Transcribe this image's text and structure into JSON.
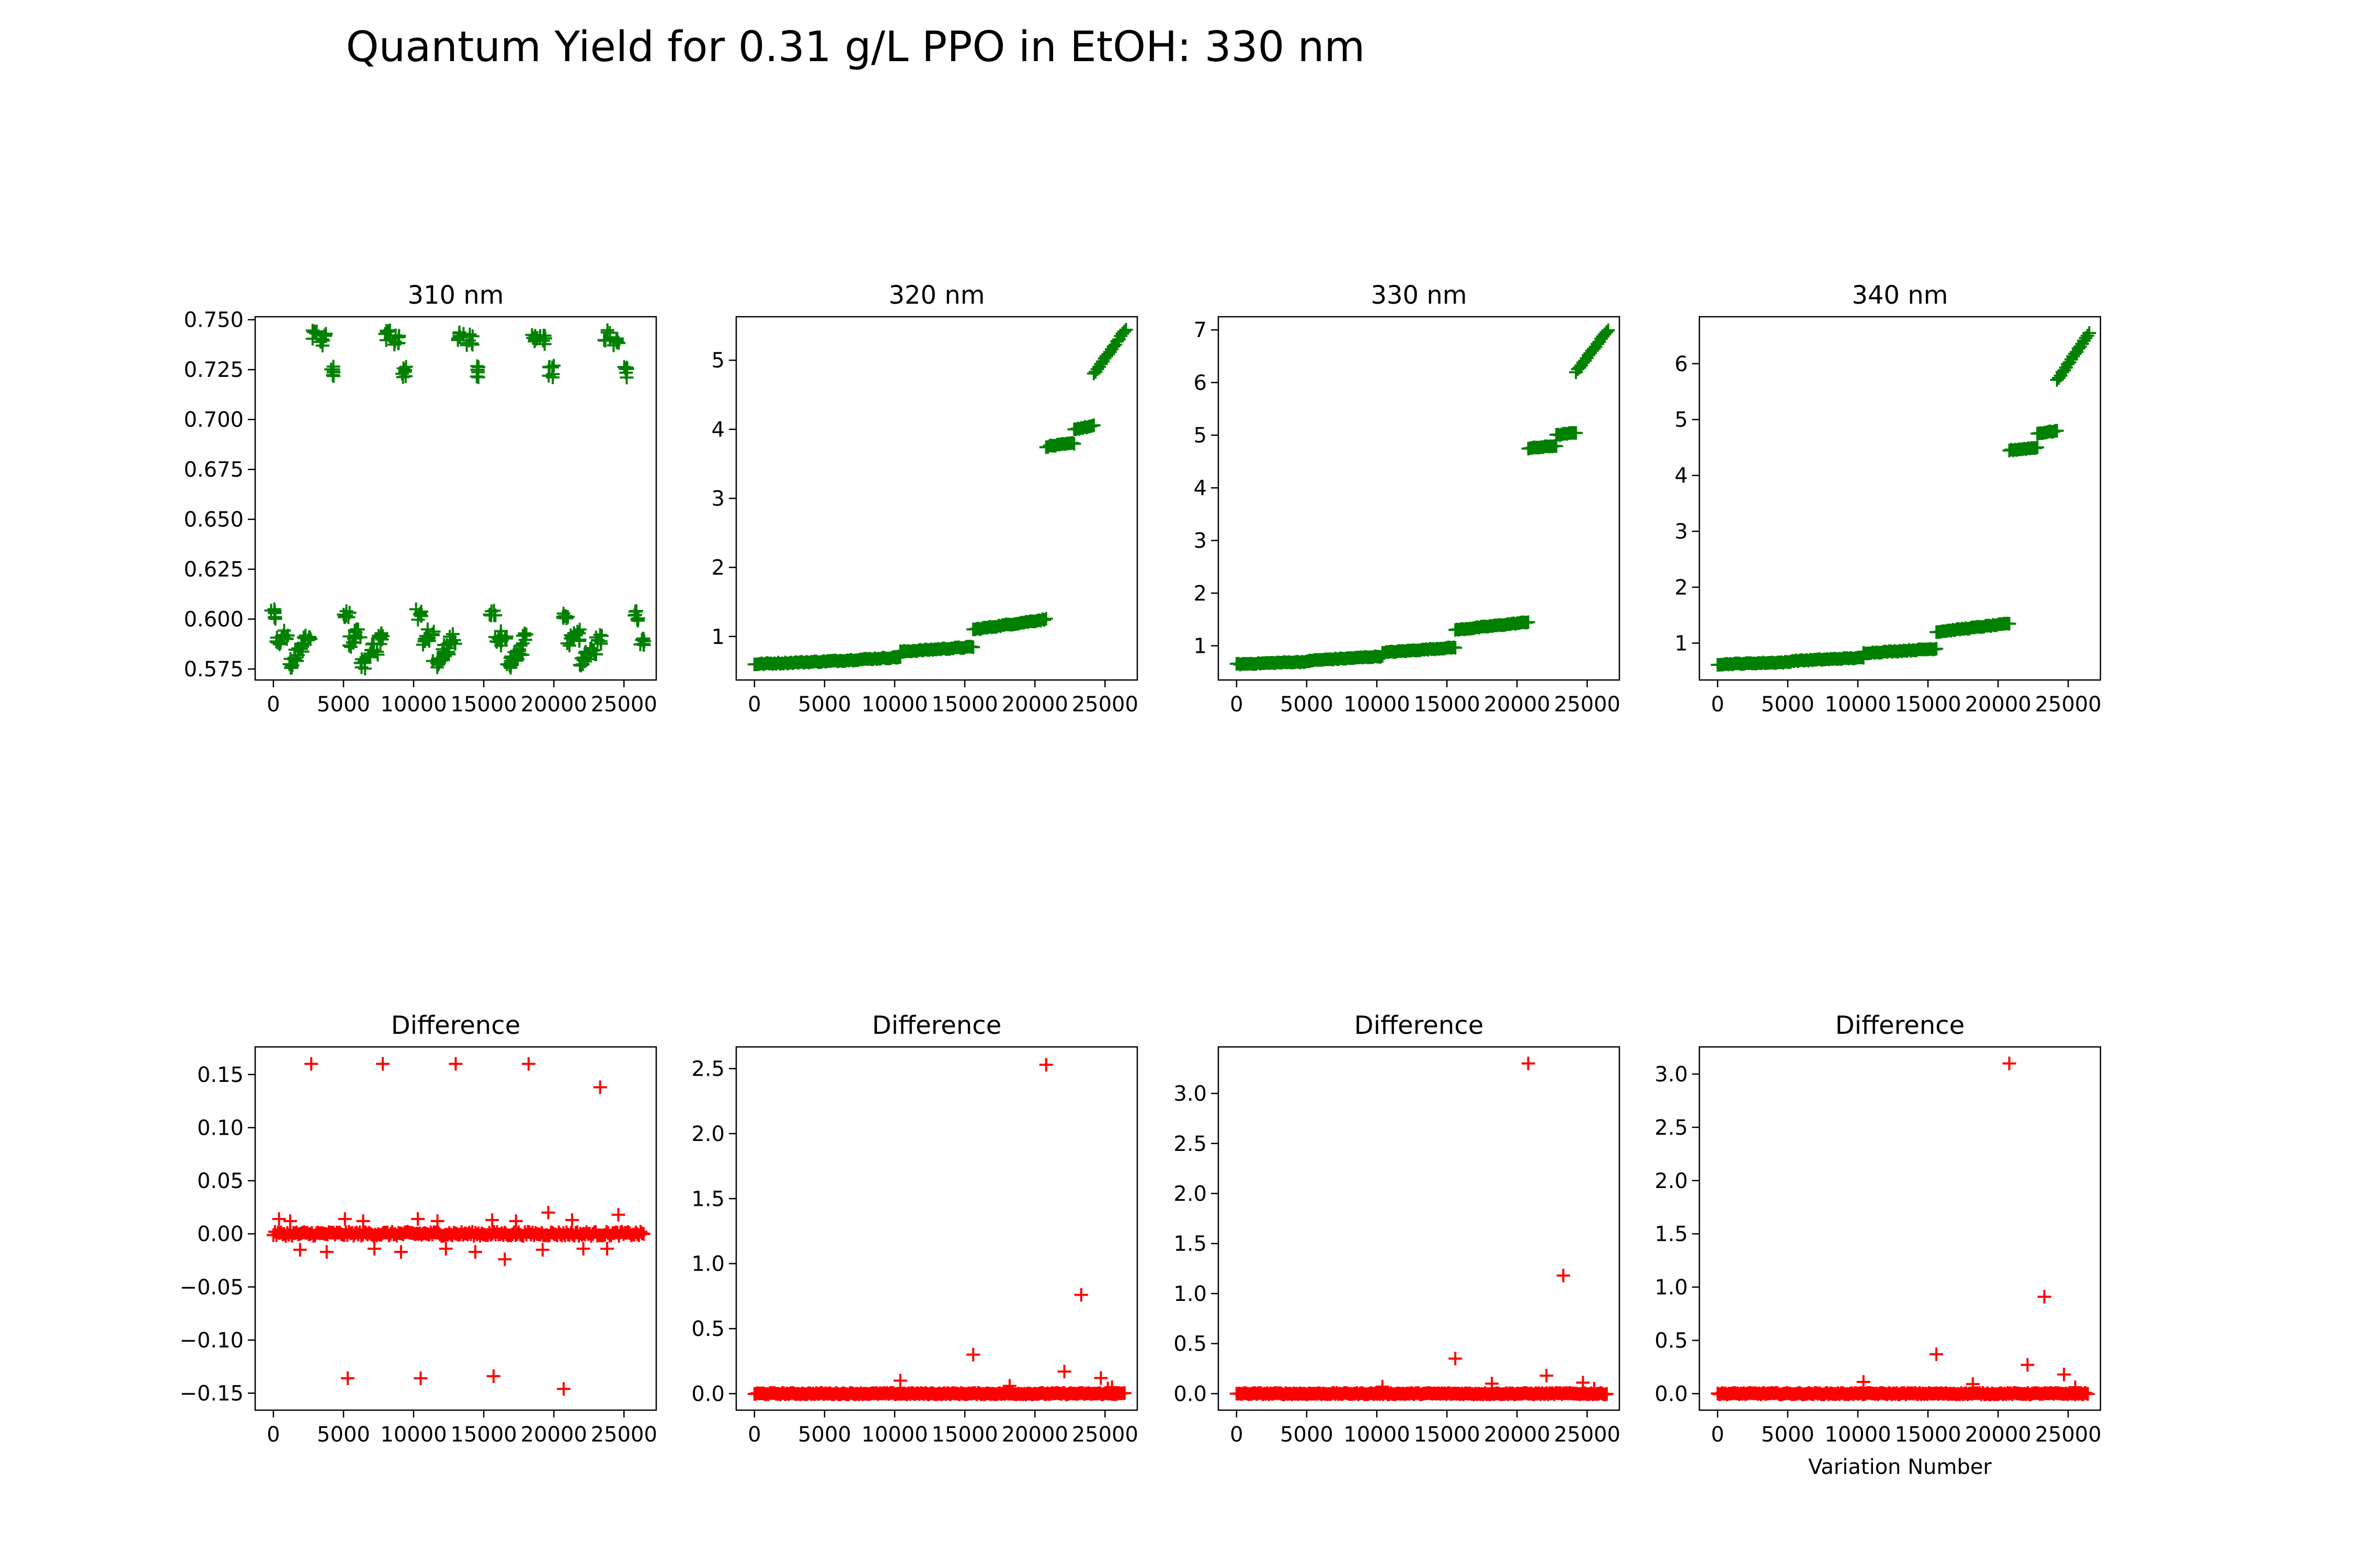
{
  "suptitle": "Quantum Yield for 0.31 g/L PPO in EtOH: 330 nm",
  "colors": {
    "data_marker": "#008000",
    "difference_marker": "#ff0000",
    "axes": "#000000",
    "background": "#ffffff"
  },
  "chart_data": [
    {
      "type": "scatter",
      "title": "310 nm",
      "xlabel": "",
      "ylabel": "",
      "marker": "+",
      "color": "#008000",
      "xlim": [
        -1300,
        27300
      ],
      "ylim": [
        0.5695,
        0.7515
      ],
      "xticks": [
        0,
        5000,
        10000,
        15000,
        20000,
        25000
      ],
      "xtick_labels": [
        "0",
        "5000",
        "10000",
        "15000",
        "20000",
        "25000"
      ],
      "yticks": [
        0.575,
        0.6,
        0.625,
        0.65,
        0.675,
        0.7,
        0.725,
        0.75
      ],
      "ytick_labels": [
        "0.575",
        "0.600",
        "0.625",
        "0.650",
        "0.675",
        "0.700",
        "0.725",
        "0.750"
      ],
      "pattern": "periodic",
      "period": 5200,
      "cluster_offsets": [
        0,
        400,
        800,
        1200,
        1600,
        2000,
        2400,
        3000,
        3600,
        4200
      ],
      "cluster_values": [
        0.602,
        0.589,
        0.592,
        0.578,
        0.582,
        0.585,
        0.59,
        0.742,
        0.74,
        0.724
      ],
      "cluster_spread": 0.006,
      "x_max": 26500
    },
    {
      "type": "scatter",
      "title": "320 nm",
      "xlabel": "",
      "ylabel": "",
      "marker": "+",
      "color": "#008000",
      "xlim": [
        -1300,
        27300
      ],
      "ylim": [
        0.37,
        5.63
      ],
      "xticks": [
        0,
        5000,
        10000,
        15000,
        20000,
        25000
      ],
      "xtick_labels": [
        "0",
        "5000",
        "10000",
        "15000",
        "20000",
        "25000"
      ],
      "yticks": [
        1,
        2,
        3,
        4,
        5
      ],
      "ytick_labels": [
        "1",
        "2",
        "3",
        "4",
        "5"
      ],
      "pattern": "segments",
      "segments": [
        [
          0,
          5200,
          0.6,
          0.64
        ],
        [
          5200,
          10400,
          0.64,
          0.7
        ],
        [
          10400,
          15600,
          0.78,
          0.85
        ],
        [
          15600,
          20800,
          1.1,
          1.25
        ],
        [
          20800,
          22800,
          3.75,
          3.8
        ],
        [
          22800,
          24200,
          4.0,
          4.05
        ],
        [
          24200,
          26500,
          4.8,
          5.45
        ]
      ]
    },
    {
      "type": "scatter",
      "title": "330 nm",
      "xlabel": "",
      "ylabel": "",
      "marker": "+",
      "color": "#008000",
      "xlim": [
        -1300,
        27300
      ],
      "ylim": [
        0.35,
        7.25
      ],
      "xticks": [
        0,
        5000,
        10000,
        15000,
        20000,
        25000
      ],
      "xtick_labels": [
        "0",
        "5000",
        "10000",
        "15000",
        "20000",
        "25000"
      ],
      "yticks": [
        1,
        2,
        3,
        4,
        5,
        6,
        7
      ],
      "ytick_labels": [
        "1",
        "2",
        "3",
        "4",
        "5",
        "6",
        "7"
      ],
      "pattern": "segments",
      "segments": [
        [
          0,
          5200,
          0.65,
          0.7
        ],
        [
          5200,
          10400,
          0.72,
          0.8
        ],
        [
          10400,
          15600,
          0.87,
          0.97
        ],
        [
          15600,
          20800,
          1.3,
          1.45
        ],
        [
          20800,
          22800,
          4.75,
          4.8
        ],
        [
          22800,
          24200,
          5.0,
          5.05
        ],
        [
          24200,
          26500,
          6.2,
          7.0
        ]
      ]
    },
    {
      "type": "scatter",
      "title": "340 nm",
      "xlabel": "",
      "ylabel": "",
      "marker": "+",
      "color": "#008000",
      "xlim": [
        -1300,
        27300
      ],
      "ylim": [
        0.34,
        6.84
      ],
      "xticks": [
        0,
        5000,
        10000,
        15000,
        20000,
        25000
      ],
      "xtick_labels": [
        "0",
        "5000",
        "10000",
        "15000",
        "20000",
        "25000"
      ],
      "yticks": [
        1,
        2,
        3,
        4,
        5,
        6
      ],
      "ytick_labels": [
        "1",
        "2",
        "3",
        "4",
        "5",
        "6"
      ],
      "pattern": "segments",
      "segments": [
        [
          0,
          5200,
          0.62,
          0.66
        ],
        [
          5200,
          10400,
          0.68,
          0.74
        ],
        [
          10400,
          15600,
          0.82,
          0.9
        ],
        [
          15600,
          20800,
          1.2,
          1.35
        ],
        [
          20800,
          22800,
          4.45,
          4.5
        ],
        [
          22800,
          24200,
          4.75,
          4.8
        ],
        [
          24200,
          26500,
          5.7,
          6.55
        ]
      ]
    },
    {
      "type": "scatter",
      "title": "Difference",
      "xlabel": "",
      "ylabel": "",
      "marker": "+",
      "color": "#ff0000",
      "xlim": [
        -1300,
        27300
      ],
      "ylim": [
        -0.166,
        0.176
      ],
      "xticks": [
        0,
        5000,
        10000,
        15000,
        20000,
        25000
      ],
      "xtick_labels": [
        "0",
        "5000",
        "10000",
        "15000",
        "20000",
        "25000"
      ],
      "yticks": [
        -0.15,
        -0.1,
        -0.05,
        0,
        0.05,
        0.1,
        0.15
      ],
      "ytick_labels": [
        "−0.15",
        "−0.10",
        "−0.05",
        "0.00",
        "0.05",
        "0.10",
        "0.15"
      ],
      "pattern": "baseline",
      "baseline": 0,
      "band": 0.004,
      "x_max": 26500,
      "outliers": [
        [
          2700,
          0.16
        ],
        [
          7800,
          0.16
        ],
        [
          13000,
          0.16
        ],
        [
          18200,
          0.16
        ],
        [
          23300,
          0.138
        ],
        [
          5300,
          -0.136
        ],
        [
          10500,
          -0.136
        ],
        [
          15700,
          -0.134
        ],
        [
          20700,
          -0.146
        ],
        [
          400,
          0.014
        ],
        [
          1200,
          0.012
        ],
        [
          1900,
          -0.015
        ],
        [
          3800,
          -0.017
        ],
        [
          5100,
          0.014
        ],
        [
          6400,
          0.012
        ],
        [
          7200,
          -0.014
        ],
        [
          9100,
          -0.017
        ],
        [
          10300,
          0.014
        ],
        [
          11700,
          0.012
        ],
        [
          12300,
          -0.014
        ],
        [
          14400,
          -0.017
        ],
        [
          15600,
          0.013
        ],
        [
          16500,
          -0.024
        ],
        [
          17300,
          0.012
        ],
        [
          19200,
          -0.015
        ],
        [
          19600,
          0.02
        ],
        [
          21300,
          0.013
        ],
        [
          22100,
          -0.014
        ],
        [
          24600,
          0.018
        ],
        [
          23800,
          -0.014
        ]
      ]
    },
    {
      "type": "scatter",
      "title": "Difference",
      "xlabel": "",
      "ylabel": "",
      "marker": "+",
      "color": "#ff0000",
      "xlim": [
        -1300,
        27300
      ],
      "ylim": [
        -0.127,
        2.667
      ],
      "xticks": [
        0,
        5000,
        10000,
        15000,
        20000,
        25000
      ],
      "xtick_labels": [
        "0",
        "5000",
        "10000",
        "15000",
        "20000",
        "25000"
      ],
      "yticks": [
        0,
        0.5,
        1,
        1.5,
        2,
        2.5
      ],
      "ytick_labels": [
        "0.0",
        "0.5",
        "1.0",
        "1.5",
        "2.0",
        "2.5"
      ],
      "pattern": "baseline",
      "baseline": 0,
      "band": 0.012,
      "x_max": 26500,
      "outliers": [
        [
          20800,
          2.53
        ],
        [
          23300,
          0.76
        ],
        [
          15600,
          0.3
        ],
        [
          22100,
          0.17
        ],
        [
          24700,
          0.12
        ],
        [
          10400,
          0.1
        ],
        [
          18200,
          0.06
        ],
        [
          25500,
          0.05
        ],
        [
          25200,
          0.04
        ]
      ]
    },
    {
      "type": "scatter",
      "title": "Difference",
      "xlabel": "",
      "ylabel": "",
      "marker": "+",
      "color": "#ff0000",
      "xlim": [
        -1300,
        27300
      ],
      "ylim": [
        -0.165,
        3.465
      ],
      "xticks": [
        0,
        5000,
        10000,
        15000,
        20000,
        25000
      ],
      "xtick_labels": [
        "0",
        "5000",
        "10000",
        "15000",
        "20000",
        "25000"
      ],
      "yticks": [
        0,
        0.5,
        1,
        1.5,
        2,
        2.5,
        3
      ],
      "ytick_labels": [
        "0.0",
        "0.5",
        "1.0",
        "1.5",
        "2.0",
        "2.5",
        "3.0"
      ],
      "pattern": "baseline",
      "baseline": 0,
      "band": 0.015,
      "x_max": 26500,
      "outliers": [
        [
          20800,
          3.3
        ],
        [
          23300,
          1.18
        ],
        [
          15600,
          0.35
        ],
        [
          22100,
          0.18
        ],
        [
          24700,
          0.11
        ],
        [
          10400,
          0.07
        ],
        [
          18200,
          0.1
        ],
        [
          25500,
          0.05
        ]
      ]
    },
    {
      "type": "scatter",
      "title": "Difference",
      "xlabel": "Variation Number",
      "ylabel": "",
      "marker": "+",
      "color": "#ff0000",
      "xlim": [
        -1300,
        27300
      ],
      "ylim": [
        -0.155,
        3.255
      ],
      "xticks": [
        0,
        5000,
        10000,
        15000,
        20000,
        25000
      ],
      "xtick_labels": [
        "0",
        "5000",
        "10000",
        "15000",
        "20000",
        "25000"
      ],
      "yticks": [
        0,
        0.5,
        1,
        1.5,
        2,
        2.5,
        3
      ],
      "ytick_labels": [
        "0.0",
        "0.5",
        "1.0",
        "1.5",
        "2.0",
        "2.5",
        "3.0"
      ],
      "pattern": "baseline",
      "baseline": 0,
      "band": 0.015,
      "x_max": 26500,
      "outliers": [
        [
          20800,
          3.1
        ],
        [
          23300,
          0.91
        ],
        [
          15600,
          0.37
        ],
        [
          22100,
          0.27
        ],
        [
          24700,
          0.18
        ],
        [
          10400,
          0.11
        ],
        [
          18200,
          0.09
        ],
        [
          25500,
          0.06
        ]
      ]
    }
  ]
}
